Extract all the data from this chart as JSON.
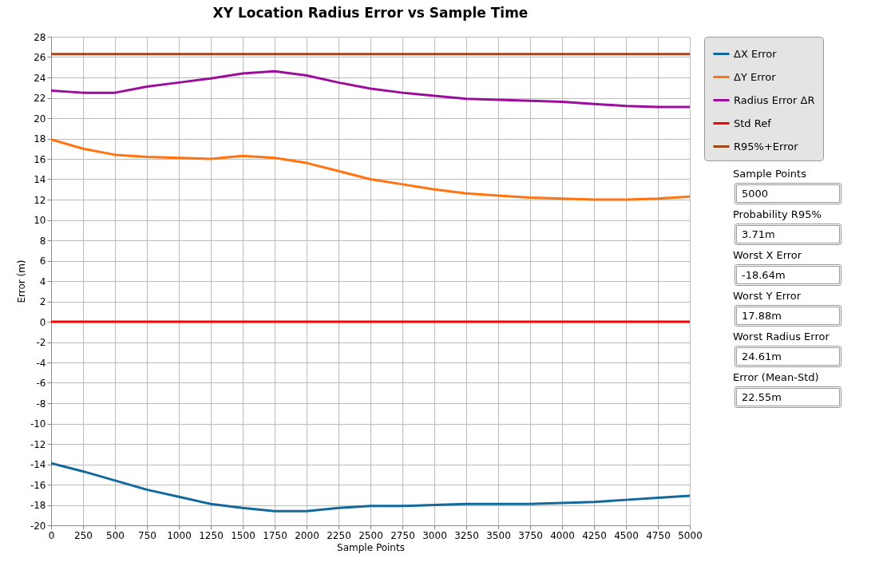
{
  "chart_data": {
    "type": "line",
    "title": "XY Location Radius Error vs Sample Time",
    "xlabel": "Sample Points",
    "ylabel": "Error (m)",
    "x": [
      0,
      250,
      500,
      750,
      1000,
      1250,
      1500,
      1750,
      2000,
      2250,
      2500,
      2750,
      3000,
      3250,
      3500,
      3750,
      4000,
      4250,
      4500,
      4750,
      5000
    ],
    "series": [
      {
        "name": "ΔX Error",
        "color": "#13699c",
        "values": [
          -13.9,
          -14.7,
          -15.6,
          -16.5,
          -17.2,
          -17.9,
          -18.3,
          -18.6,
          -18.6,
          -18.3,
          -18.1,
          -18.1,
          -18.0,
          -17.9,
          -17.9,
          -17.9,
          -17.8,
          -17.7,
          -17.5,
          -17.3,
          -17.1
        ]
      },
      {
        "name": "ΔY Error",
        "color": "#ff7410",
        "values": [
          17.9,
          17.0,
          16.4,
          16.2,
          16.1,
          16.0,
          16.3,
          16.1,
          15.6,
          14.8,
          14.0,
          13.5,
          13.0,
          12.6,
          12.4,
          12.2,
          12.1,
          12.0,
          12.0,
          12.1,
          12.3
        ]
      },
      {
        "name": "Radius Error ΔR",
        "color": "#9b0e9b",
        "values": [
          22.7,
          22.5,
          22.5,
          23.1,
          23.5,
          23.9,
          24.4,
          24.6,
          24.2,
          23.5,
          22.9,
          22.5,
          22.2,
          21.9,
          21.8,
          21.7,
          21.6,
          21.4,
          21.2,
          21.1,
          21.1
        ]
      },
      {
        "name": "Std Ref",
        "color": "#ff0000",
        "values": [
          0,
          0,
          0,
          0,
          0,
          0,
          0,
          0,
          0,
          0,
          0,
          0,
          0,
          0,
          0,
          0,
          0,
          0,
          0,
          0,
          0
        ]
      },
      {
        "name": "R95%+Error",
        "color": "#a0461a",
        "values": [
          26.3,
          26.3,
          26.3,
          26.3,
          26.3,
          26.3,
          26.3,
          26.3,
          26.3,
          26.3,
          26.3,
          26.3,
          26.3,
          26.3,
          26.3,
          26.3,
          26.3,
          26.3,
          26.3,
          26.3,
          26.3
        ]
      }
    ],
    "xlim": [
      0,
      5000
    ],
    "xticks": [
      0,
      250,
      500,
      750,
      1000,
      1250,
      1500,
      1750,
      2000,
      2250,
      2500,
      2750,
      3000,
      3250,
      3500,
      3750,
      4000,
      4250,
      4500,
      4750,
      5000
    ],
    "ylim": [
      -20,
      28
    ],
    "yticks": [
      -20,
      -18,
      -16,
      -14,
      -12,
      -10,
      -8,
      -6,
      -4,
      -2,
      0,
      2,
      4,
      6,
      8,
      10,
      12,
      14,
      16,
      18,
      20,
      22,
      24,
      26,
      28
    ],
    "grid": true,
    "legend": "top right",
    "line_style": "solid",
    "annotations": [
      "Sample Points",
      "5000",
      "Probability R95%",
      "3.71m",
      "Worst X Error",
      "-18.64m",
      "Worst Y Error",
      "17.88m",
      "Worst Radius Error",
      "24.61m",
      "Error (Mean-Std)",
      "22.55m"
    ]
  }
}
